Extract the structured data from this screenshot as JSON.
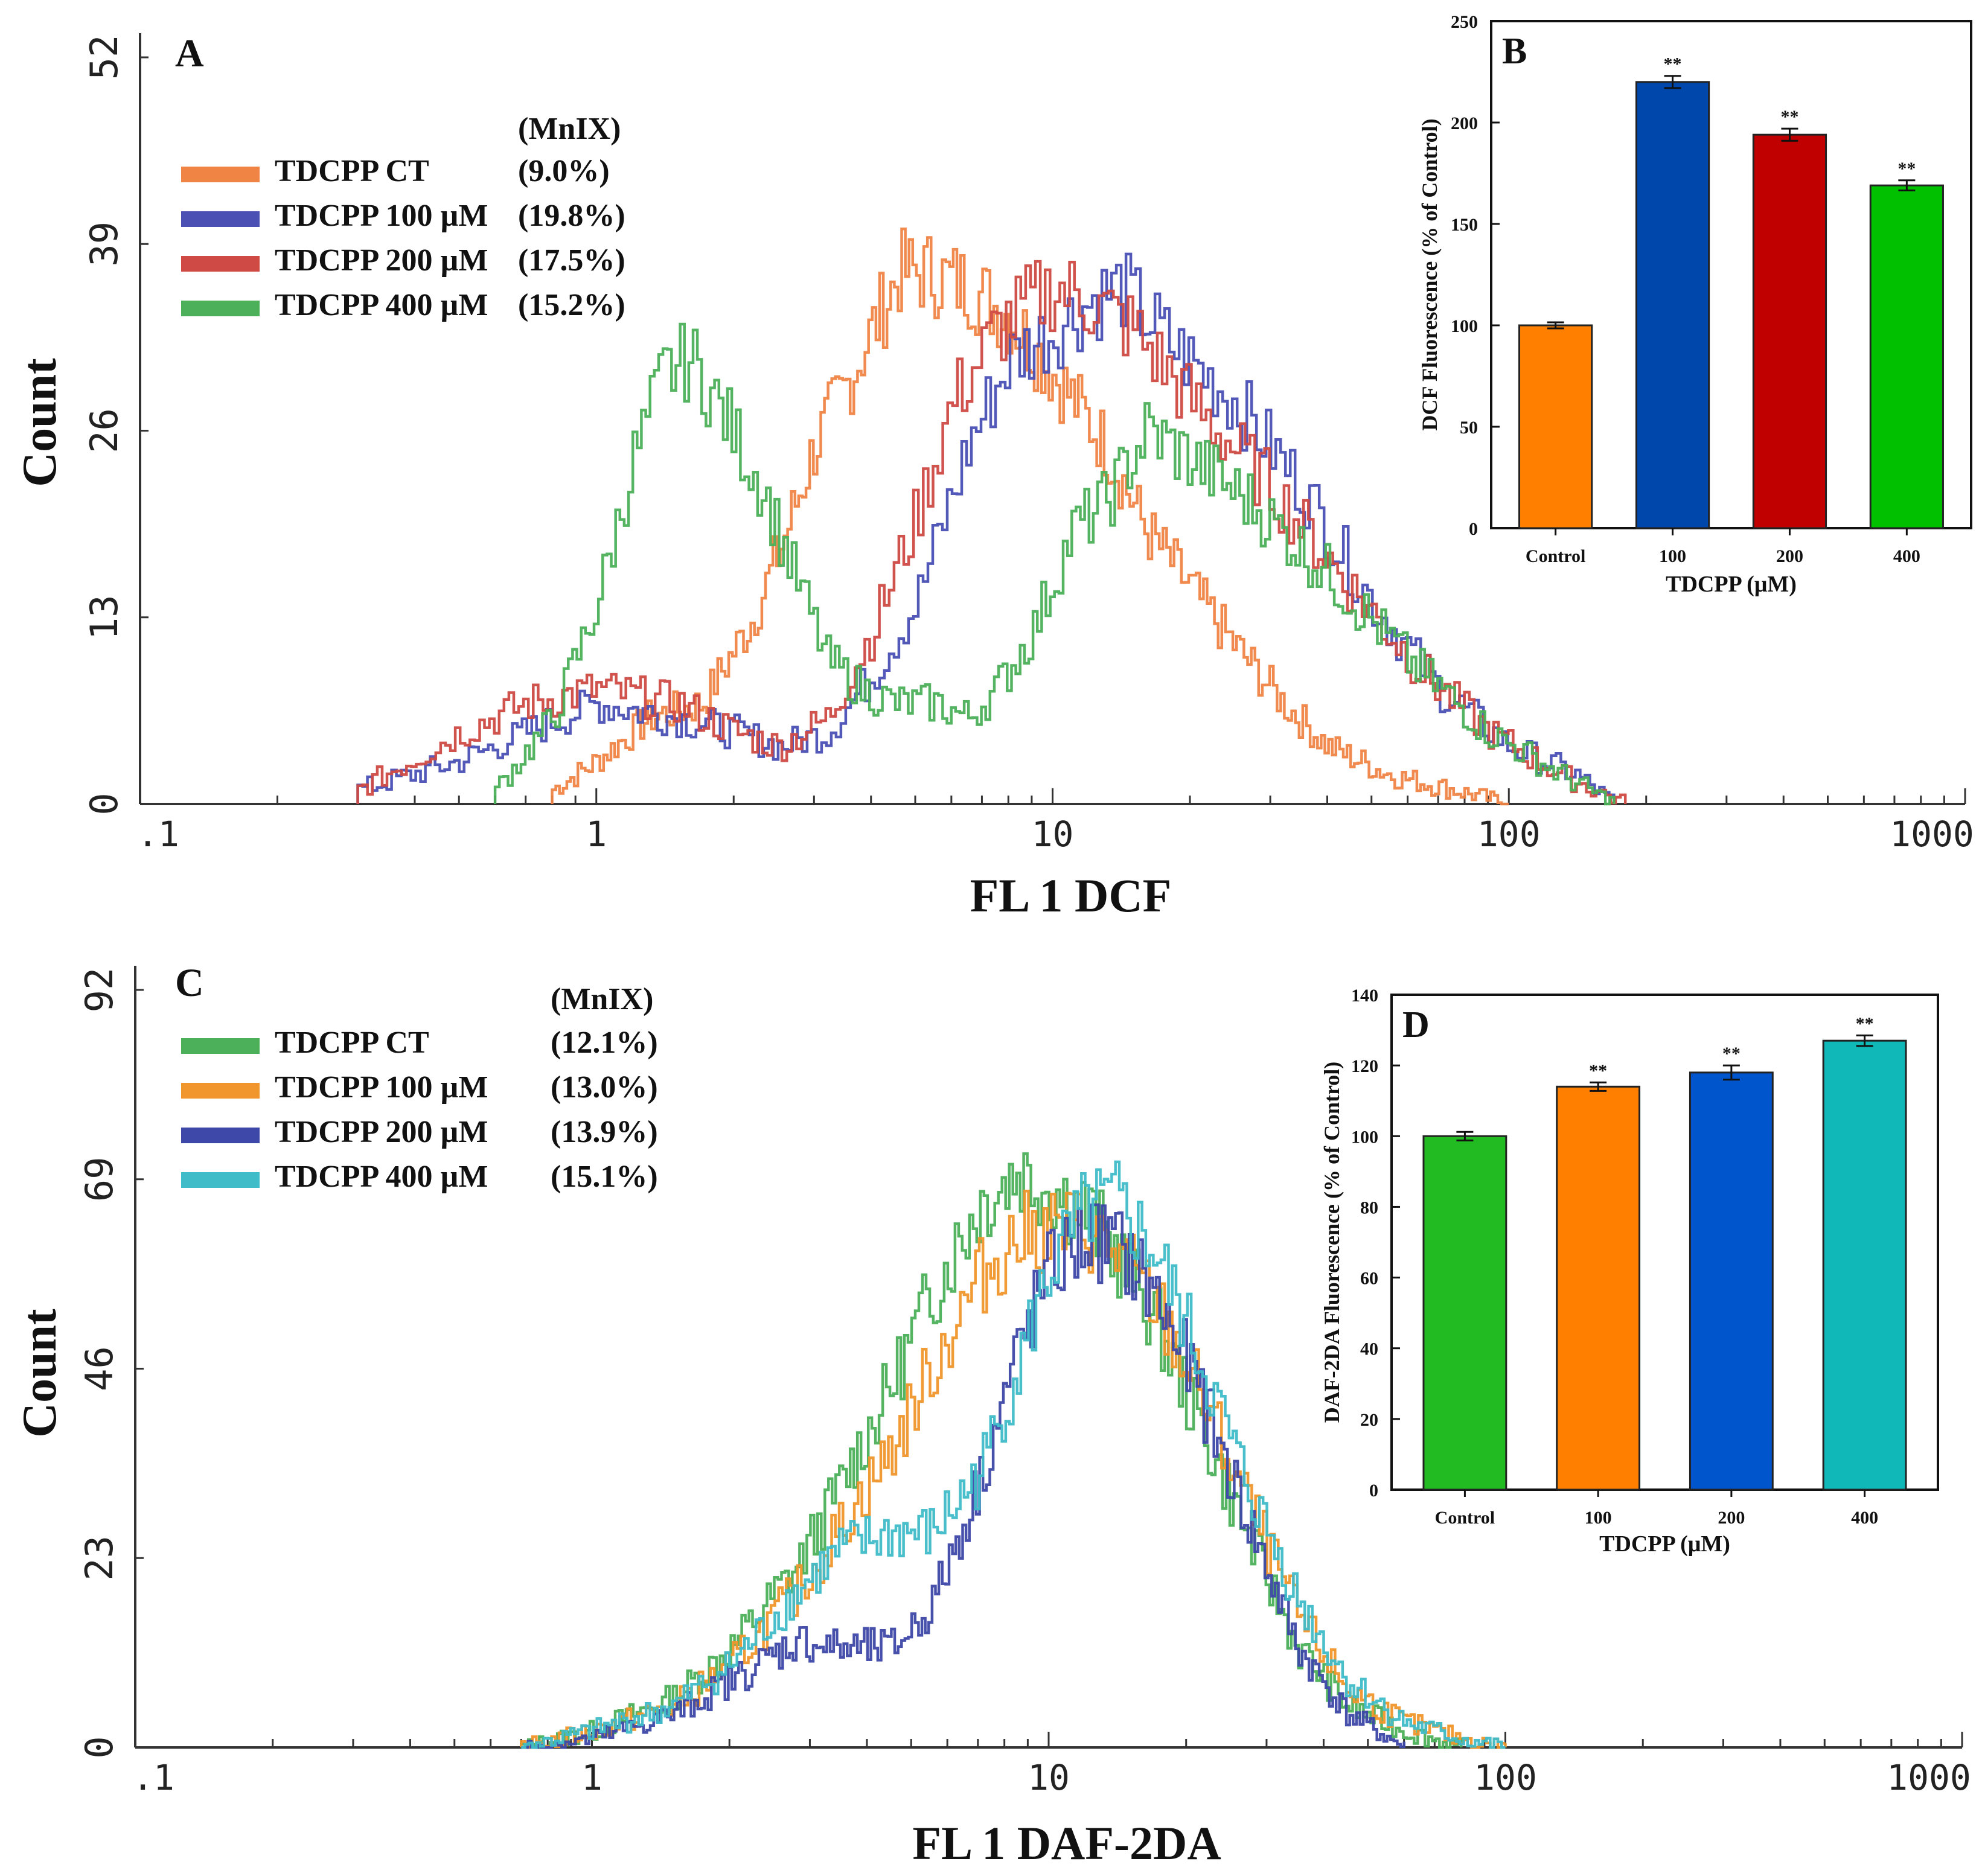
{
  "chart_data": [
    {
      "id": "A",
      "type": "line",
      "panel_label": "A",
      "xlabel": "FL 1 DCF",
      "ylabel": "Count",
      "x_scale": "log",
      "xlim": [
        0.1,
        1000
      ],
      "ylim": [
        0,
        52
      ],
      "x_ticks": [
        ".1",
        "1",
        "10",
        "100",
        "1000"
      ],
      "y_ticks": [
        "0",
        "13",
        "26",
        "39",
        "52"
      ],
      "legend_header": "(MnIX)",
      "series": [
        {
          "name": "TDCPP CT",
          "pct": "(9.0%)",
          "color": "#f08444",
          "x": [
            0.8,
            1.0,
            1.3,
            1.7,
            2.2,
            2.6,
            3.0,
            3.5,
            4.0,
            4.6,
            5.3,
            6.5,
            8.0,
            10,
            13,
            16,
            20,
            25,
            32,
            40,
            55,
            75,
            100
          ],
          "y": [
            1,
            3,
            6,
            7,
            13,
            19,
            25,
            29,
            33,
            37,
            37,
            36,
            34,
            30,
            25,
            19,
            15,
            11,
            7,
            4,
            2,
            1,
            0
          ]
        },
        {
          "name": "TDCPP 100 µM",
          "pct": "(19.8%)",
          "color": "#4a50b4",
          "x": [
            0.3,
            0.5,
            0.7,
            1.0,
            1.5,
            2.0,
            2.5,
            3.2,
            4.0,
            5.0,
            6.5,
            8.0,
            10,
            12,
            14,
            18,
            25,
            35,
            50,
            70,
            100,
            140,
            170
          ],
          "y": [
            1,
            3,
            5,
            7,
            6,
            5,
            4,
            5,
            9,
            14,
            25,
            31,
            33,
            35,
            36,
            32,
            28,
            22,
            14,
            8,
            4,
            2,
            0
          ]
        },
        {
          "name": "TDCPP 200 µM",
          "pct": "(17.5%)",
          "color": "#cf4a44",
          "x": [
            0.3,
            0.5,
            0.7,
            1.0,
            1.5,
            2.0,
            2.5,
            3.2,
            4.0,
            5.0,
            6.0,
            7.5,
            9.0,
            10,
            12,
            15,
            20,
            30,
            45,
            65,
            90,
            130,
            180
          ],
          "y": [
            1,
            5,
            7,
            8,
            7,
            5,
            4,
            6,
            12,
            20,
            28,
            33,
            35,
            36,
            35,
            33,
            28,
            22,
            15,
            9,
            5,
            2,
            0
          ]
        },
        {
          "name": "TDCPP 400 µM",
          "pct": "(15.2%)",
          "color": "#4cb05a",
          "x": [
            0.6,
            0.8,
            1.0,
            1.2,
            1.4,
            1.6,
            1.9,
            2.3,
            2.7,
            3.2,
            3.8,
            4.5,
            5.5,
            6.5,
            7.5,
            9.0,
            11,
            13,
            16,
            20,
            27,
            40,
            60,
            90,
            130,
            170
          ],
          "y": [
            1,
            6,
            14,
            24,
            30,
            31,
            27,
            22,
            16,
            10,
            8,
            7,
            7,
            6,
            8,
            12,
            19,
            21,
            26,
            24,
            21,
            16,
            10,
            5,
            2,
            0
          ]
        }
      ]
    },
    {
      "id": "B",
      "type": "bar",
      "panel_label": "B",
      "categories": [
        "Control",
        "100",
        "200",
        "400"
      ],
      "values": [
        100,
        220,
        194,
        169
      ],
      "errors": [
        1.5,
        3,
        3,
        2.5
      ],
      "annotations": [
        "",
        "**",
        "**",
        "**"
      ],
      "colors": [
        "#ff8000",
        "#0047ab",
        "#c00000",
        "#00c000"
      ],
      "xlabel": "TDCPP (μM)",
      "ylabel": "DCF Fluorescence (% of Control)",
      "ylim": [
        0,
        250
      ],
      "y_ticks": [
        "0",
        "50",
        "100",
        "150",
        "200",
        "250"
      ]
    },
    {
      "id": "C",
      "type": "line",
      "panel_label": "C",
      "xlabel": "FL 1 DAF-2DA",
      "ylabel": "Count",
      "x_scale": "log",
      "xlim": [
        0.1,
        1000
      ],
      "ylim": [
        0,
        92
      ],
      "x_ticks": [
        ".1",
        "1",
        "10",
        "100",
        "1000"
      ],
      "y_ticks": [
        "0",
        "23",
        "46",
        "69",
        "92"
      ],
      "legend_header": "(MnIX)",
      "series": [
        {
          "name": "TDCPP CT",
          "pct": "(12.1%)",
          "color": "#4cb05a",
          "x": [
            0.7,
            1.0,
            1.5,
            2.0,
            2.8,
            3.5,
            4.5,
            5.5,
            7.0,
            8.5,
            10,
            12,
            14,
            17,
            21,
            27,
            35,
            45,
            60,
            80
          ],
          "y": [
            0,
            2,
            6,
            12,
            22,
            32,
            44,
            55,
            66,
            70,
            68,
            65,
            60,
            52,
            40,
            26,
            12,
            5,
            2,
            0
          ]
        },
        {
          "name": "TDCPP 100 µM",
          "pct": "(13.0%)",
          "color": "#f0962c",
          "x": [
            0.7,
            1.0,
            1.5,
            2.0,
            2.8,
            3.5,
            4.5,
            5.5,
            7.0,
            8.5,
            10,
            12,
            14,
            17,
            21,
            27,
            35,
            45,
            60,
            80,
            100
          ],
          "y": [
            0,
            2,
            5,
            10,
            19,
            27,
            36,
            46,
            57,
            62,
            63,
            63,
            60,
            54,
            44,
            30,
            16,
            7,
            3,
            1,
            0
          ]
        },
        {
          "name": "TDCPP 200 µM",
          "pct": "(13.9%)",
          "color": "#3d48a8",
          "x": [
            0.7,
            1.0,
            1.5,
            2.0,
            2.8,
            3.5,
            4.5,
            5.5,
            7.0,
            8.5,
            10,
            12,
            14,
            17,
            21,
            27,
            35,
            45,
            60
          ],
          "y": [
            0,
            1,
            4,
            8,
            13,
            12,
            12,
            17,
            32,
            48,
            58,
            62,
            61,
            55,
            44,
            28,
            12,
            4,
            0
          ]
        },
        {
          "name": "TDCPP 400 µM",
          "pct": "(15.1%)",
          "color": "#3fbcc8",
          "x": [
            0.7,
            1.0,
            1.5,
            2.0,
            2.8,
            3.5,
            4.5,
            5.5,
            7.0,
            8.5,
            10,
            12,
            14,
            17,
            21,
            27,
            35,
            45,
            60,
            80,
            100
          ],
          "y": [
            0,
            2,
            5,
            10,
            19,
            24,
            26,
            26,
            33,
            46,
            58,
            65,
            66,
            60,
            48,
            32,
            18,
            8,
            3,
            1,
            0
          ]
        }
      ]
    },
    {
      "id": "D",
      "type": "bar",
      "panel_label": "D",
      "categories": [
        "Control",
        "100",
        "200",
        "400"
      ],
      "values": [
        100,
        114,
        118,
        127
      ],
      "errors": [
        1.2,
        1.2,
        2.0,
        1.5
      ],
      "annotations": [
        "",
        "**",
        "**",
        "**"
      ],
      "colors": [
        "#22bb22",
        "#ff8000",
        "#0055cc",
        "#11b8b8"
      ],
      "xlabel": "TDCPP (μM)",
      "ylabel": "DAF-2DA Fluorescence (% of Control)",
      "ylim": [
        0,
        140
      ],
      "y_ticks": [
        "0",
        "20",
        "40",
        "60",
        "80",
        "100",
        "120",
        "140"
      ]
    }
  ]
}
